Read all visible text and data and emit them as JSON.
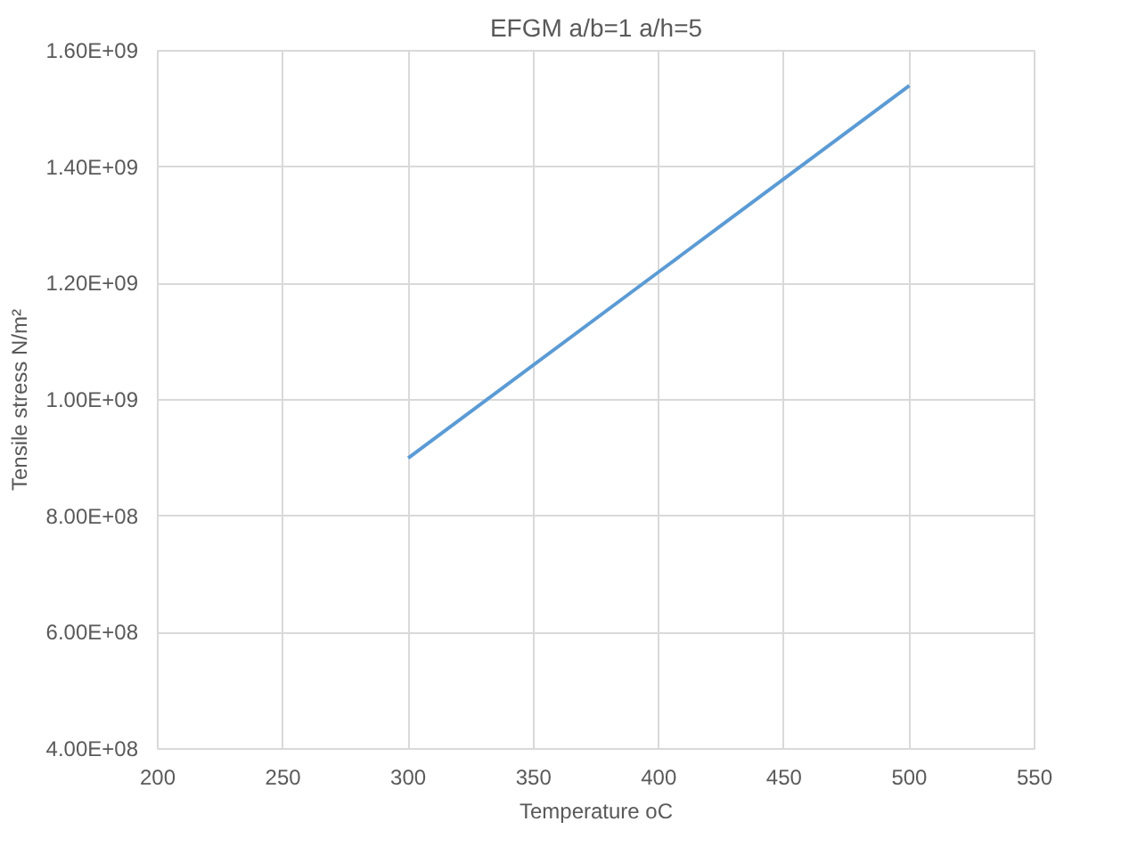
{
  "chart_data": {
    "type": "line",
    "title": "EFGM a/b=1 a/h=5",
    "xlabel": "Temperature oC",
    "ylabel": "Tensile stress N/m²",
    "x": [
      300,
      400,
      500
    ],
    "series": [
      {
        "color": "#5b9bd5",
        "values": [
          900000000,
          1220000000,
          1540000000
        ]
      }
    ],
    "xlim": [
      200,
      550
    ],
    "xticks": [
      200,
      250,
      300,
      350,
      400,
      450,
      500,
      550
    ],
    "ylim": [
      400000000,
      1600000000
    ],
    "yticks": [
      {
        "value": 400000000,
        "label": "4.00E+08"
      },
      {
        "value": 600000000,
        "label": "6.00E+08"
      },
      {
        "value": 800000000,
        "label": "8.00E+08"
      },
      {
        "value": 1000000000,
        "label": "1.00E+09"
      },
      {
        "value": 1200000000,
        "label": "1.20E+09"
      },
      {
        "value": 1400000000,
        "label": "1.40E+09"
      },
      {
        "value": 1600000000,
        "label": "1.60E+09"
      }
    ],
    "grid": true
  }
}
